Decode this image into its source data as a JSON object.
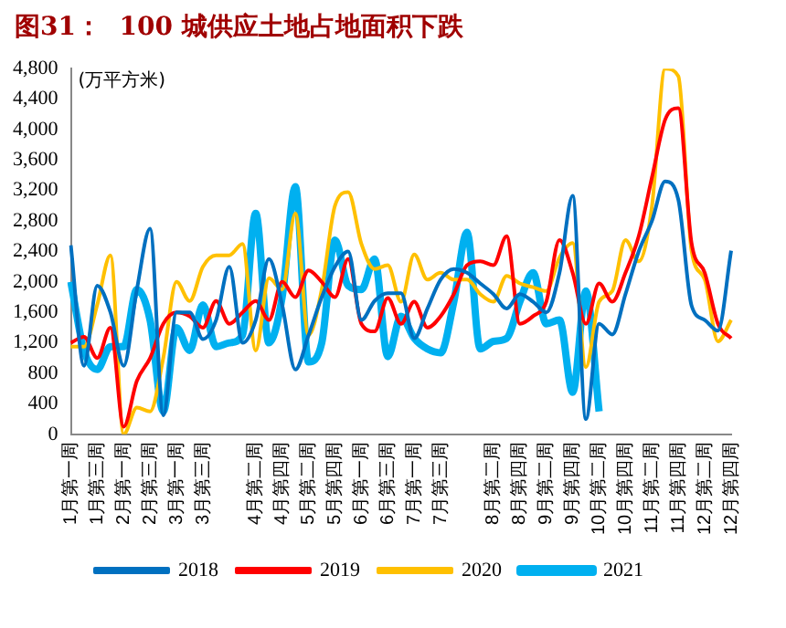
{
  "chart_data": {
    "type": "line",
    "title": "图31：  100 城供应土地占地面积下跌",
    "ylabel": "(万平方米)",
    "categories": [
      "1月第一周",
      null,
      "1月第三周",
      null,
      "2月第一周",
      null,
      "2月第三周",
      null,
      "3月第一周",
      null,
      "3月第三周",
      null,
      null,
      null,
      "4月第二周",
      null,
      "4月第四周",
      null,
      "5月第二周",
      null,
      "5月第四周",
      null,
      "6月第一周",
      null,
      "6月第三周",
      null,
      "7月第一周",
      null,
      "7月第三周",
      null,
      null,
      null,
      "8月第二周",
      null,
      "8月第四周",
      null,
      "9月第二周",
      null,
      "9月第四周",
      null,
      "10月第二周",
      null,
      "10月第四周",
      null,
      "11月第二周",
      null,
      "11月第四周",
      null,
      "12月第二周",
      null,
      "12月第四周"
    ],
    "series": [
      {
        "name": "2018",
        "color": "#0070c0",
        "values": [
          2480,
          900,
          1950,
          1600,
          900,
          1900,
          2700,
          250,
          1600,
          1600,
          1250,
          1500,
          2200,
          1200,
          1500,
          2300,
          1700,
          850,
          1300,
          1800,
          2200,
          2400,
          1500,
          1750,
          1850,
          1850,
          1260,
          1650,
          2030,
          2170,
          2120,
          1980,
          1840,
          1650,
          1840,
          1740,
          1600,
          2120,
          3130,
          200,
          1450,
          1310,
          1840,
          2400,
          2800,
          3320,
          3080,
          1690,
          1500,
          1360,
          2410
        ]
      },
      {
        "name": "2019",
        "color": "#ff0000",
        "values": [
          1200,
          1280,
          1000,
          1400,
          100,
          700,
          1000,
          1450,
          1600,
          1550,
          1400,
          1750,
          1450,
          1600,
          1750,
          1500,
          2000,
          1800,
          2150,
          2000,
          1800,
          2300,
          1450,
          1350,
          1790,
          1450,
          1740,
          1400,
          1550,
          1840,
          2220,
          2270,
          2220,
          2600,
          1450,
          1550,
          1740,
          2550,
          2120,
          1450,
          1980,
          1740,
          2120,
          2600,
          3370,
          4130,
          4280,
          2510,
          2120,
          1450,
          1260
        ]
      },
      {
        "name": "2020",
        "color": "#ffc000",
        "values": [
          1150,
          1150,
          1700,
          2350,
          0,
          350,
          300,
          1000,
          2000,
          1750,
          2200,
          2350,
          2350,
          2500,
          1100,
          2050,
          1900,
          2900,
          1300,
          1900,
          3000,
          3180,
          2500,
          2170,
          2220,
          1740,
          2360,
          2030,
          2120,
          2030,
          2030,
          1840,
          1740,
          2080,
          1980,
          1930,
          1880,
          2320,
          2510,
          880,
          1740,
          1880,
          2550,
          2270,
          2990,
          4800,
          4700,
          2410,
          2030,
          1220,
          1500
        ]
      },
      {
        "name": "2021",
        "color": "#00b0f0",
        "values": [
          2000,
          1100,
          850,
          1150,
          1150,
          1900,
          1500,
          300,
          1400,
          1100,
          1700,
          1150,
          1200,
          1300,
          2900,
          1200,
          1800,
          3250,
          950,
          1200,
          2550,
          1950,
          1900,
          2300,
          1020,
          1550,
          1260,
          1120,
          1070,
          1740,
          2650,
          1120,
          1220,
          1260,
          1740,
          2120,
          1450,
          1500,
          550,
          1880,
          300,
          null,
          null,
          null,
          null,
          null,
          null,
          null,
          null,
          null,
          null
        ]
      }
    ],
    "ylim": [
      0,
      4800
    ],
    "yticks": [
      0,
      400,
      800,
      {
        "value": 1200,
        "label": "1,200"
      },
      {
        "value": 1600,
        "label": "1,600"
      },
      {
        "value": 2000,
        "label": "2,000"
      },
      {
        "value": 2400,
        "label": "2,400"
      },
      {
        "value": 2800,
        "label": "2,800"
      },
      {
        "value": 3200,
        "label": "3,200"
      },
      {
        "value": 3600,
        "label": "3,600"
      },
      {
        "value": 4000,
        "label": "4,000"
      },
      {
        "value": 4400,
        "label": "4,400"
      },
      {
        "value": 4800,
        "label": "4,800"
      }
    ],
    "grid": false,
    "legend": "bottom",
    "marker": "none",
    "line_style": "solid"
  }
}
